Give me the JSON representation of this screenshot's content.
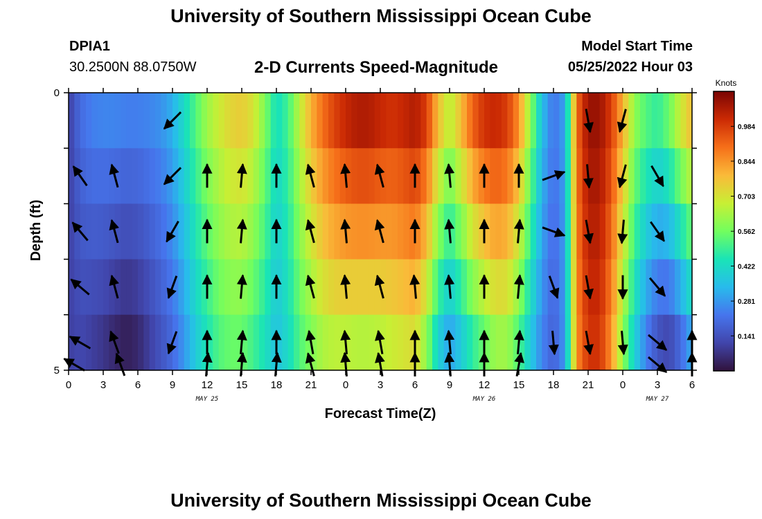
{
  "header": {
    "title": "University of Southern Mississippi Ocean Cube",
    "station_id": "DPIA1",
    "station_coords": "30.2500N  88.0750W",
    "chart_title": "2-D Currents Speed-Magnitude",
    "model_start_label": "Model Start Time",
    "model_start_value": "05/25/2022 Hour 03"
  },
  "footer": {
    "title": "University of Southern Mississippi Ocean Cube"
  },
  "chart_data": {
    "type": "heatmap",
    "title": "2-D Currents Speed-Magnitude",
    "xlabel": "Forecast Time(Z)",
    "ylabel": "Depth (ft)",
    "x_unit": "hours UTC from 2022-05-25 00Z",
    "x_range": [
      0,
      54
    ],
    "x_ticks": [
      0,
      3,
      6,
      9,
      12,
      15,
      18,
      21,
      24,
      27,
      30,
      33,
      36,
      39,
      42,
      45,
      48,
      51,
      54
    ],
    "x_tick_labels": [
      "0",
      "3",
      "6",
      "9",
      "12",
      "15",
      "18",
      "21",
      "0",
      "3",
      "6",
      "9",
      "12",
      "15",
      "18",
      "21",
      "0",
      "3",
      "6"
    ],
    "date_labels": [
      {
        "x": 12,
        "text": "MAY 25"
      },
      {
        "x": 36,
        "text": "MAY 26"
      },
      {
        "x": 51,
        "text": "MAY 27"
      }
    ],
    "y_range": [
      0,
      5
    ],
    "y_ticks": [
      0,
      1,
      2,
      3,
      4,
      5
    ],
    "y_tick_labels": [
      "0",
      "",
      "",
      "",
      "",
      "5"
    ],
    "colorbar": {
      "unit": "Knots",
      "range": [
        0,
        1.125
      ],
      "tick_values": [
        0.141,
        0.281,
        0.422,
        0.562,
        0.703,
        0.844,
        0.984
      ],
      "tick_labels": [
        "0.141",
        "0.281",
        "0.422",
        "0.562",
        "0.703",
        "0.844",
        "0.984"
      ]
    },
    "depths": [
      0.5,
      1.5,
      2.5,
      3.5,
      4.5
    ],
    "surface_profile": [
      [
        0,
        0.1
      ],
      [
        1,
        0.2
      ],
      [
        2,
        0.24
      ],
      [
        3,
        0.25
      ],
      [
        4,
        0.25
      ],
      [
        5,
        0.24
      ],
      [
        6,
        0.24
      ],
      [
        7,
        0.25
      ],
      [
        8,
        0.27
      ],
      [
        9,
        0.32
      ],
      [
        10,
        0.42
      ],
      [
        11,
        0.52
      ],
      [
        12,
        0.62
      ],
      [
        13,
        0.68
      ],
      [
        14,
        0.73
      ],
      [
        15,
        0.75
      ],
      [
        16,
        0.7
      ],
      [
        17,
        0.58
      ],
      [
        18,
        0.43
      ],
      [
        19,
        0.5
      ],
      [
        20,
        0.66
      ],
      [
        21,
        0.8
      ],
      [
        22,
        0.9
      ],
      [
        23,
        0.97
      ],
      [
        24,
        1.02
      ],
      [
        25,
        1.05
      ],
      [
        26,
        1.05
      ],
      [
        27,
        1.02
      ],
      [
        28,
        1.0
      ],
      [
        29,
        1.02
      ],
      [
        30,
        1.05
      ],
      [
        31,
        0.98
      ],
      [
        32,
        0.78
      ],
      [
        33,
        0.65
      ],
      [
        34,
        0.78
      ],
      [
        35,
        0.92
      ],
      [
        36,
        1.0
      ],
      [
        37,
        1.02
      ],
      [
        38,
        0.98
      ],
      [
        39,
        0.85
      ],
      [
        40,
        0.6
      ],
      [
        41,
        0.35
      ],
      [
        42,
        0.22
      ],
      [
        43,
        0.3
      ],
      [
        44,
        0.9
      ],
      [
        45,
        1.08
      ],
      [
        46,
        1.08
      ],
      [
        47,
        0.98
      ],
      [
        48,
        0.8
      ],
      [
        49,
        0.6
      ],
      [
        50,
        0.52
      ],
      [
        51,
        0.48
      ],
      [
        52,
        0.55
      ],
      [
        53,
        0.68
      ],
      [
        54,
        0.78
      ]
    ],
    "bottom_profile": [
      [
        0,
        0.1
      ],
      [
        1,
        0.12
      ],
      [
        2,
        0.1
      ],
      [
        3,
        0.08
      ],
      [
        4,
        0.05
      ],
      [
        5,
        0.03
      ],
      [
        6,
        0.05
      ],
      [
        7,
        0.1
      ],
      [
        8,
        0.15
      ],
      [
        9,
        0.2
      ],
      [
        10,
        0.28
      ],
      [
        11,
        0.38
      ],
      [
        12,
        0.45
      ],
      [
        13,
        0.52
      ],
      [
        14,
        0.55
      ],
      [
        15,
        0.55
      ],
      [
        16,
        0.5
      ],
      [
        17,
        0.44
      ],
      [
        18,
        0.36
      ],
      [
        19,
        0.42
      ],
      [
        20,
        0.52
      ],
      [
        21,
        0.58
      ],
      [
        22,
        0.64
      ],
      [
        23,
        0.66
      ],
      [
        24,
        0.66
      ],
      [
        25,
        0.65
      ],
      [
        26,
        0.65
      ],
      [
        27,
        0.66
      ],
      [
        28,
        0.68
      ],
      [
        29,
        0.7
      ],
      [
        30,
        0.72
      ],
      [
        31,
        0.6
      ],
      [
        32,
        0.4
      ],
      [
        33,
        0.3
      ],
      [
        34,
        0.38
      ],
      [
        35,
        0.48
      ],
      [
        36,
        0.55
      ],
      [
        37,
        0.62
      ],
      [
        38,
        0.62
      ],
      [
        39,
        0.52
      ],
      [
        40,
        0.38
      ],
      [
        41,
        0.25
      ],
      [
        42,
        0.18
      ],
      [
        43,
        0.28
      ],
      [
        44,
        0.85
      ],
      [
        45,
        1.0
      ],
      [
        46,
        1.0
      ],
      [
        47,
        0.85
      ],
      [
        48,
        0.6
      ],
      [
        49,
        0.4
      ],
      [
        50,
        0.25
      ],
      [
        51,
        0.15
      ],
      [
        52,
        0.12
      ],
      [
        53,
        0.2
      ],
      [
        54,
        0.32
      ]
    ],
    "vectors": [
      {
        "t": 9,
        "depths": [
          0.5,
          1.5,
          2.5,
          3.5,
          4.5
        ],
        "dir": [
          225,
          225,
          210,
          200,
          200
        ]
      },
      {
        "t": 1,
        "depths": [
          1.5,
          2.5,
          3.5,
          4.5
        ],
        "dir": [
          325,
          320,
          310,
          300
        ]
      },
      {
        "t": 4,
        "depths": [
          1.5,
          2.5,
          3.5,
          4.5
        ],
        "dir": [
          345,
          345,
          345,
          340
        ]
      },
      {
        "t": 0.5,
        "depths": [
          4.9
        ],
        "dir": [
          300
        ]
      },
      {
        "t": 4.5,
        "depths": [
          4.9
        ],
        "dir": [
          340
        ]
      },
      {
        "t": 12,
        "depths": [
          1.5,
          2.5,
          3.5,
          4.5,
          4.9
        ],
        "dir": [
          0,
          0,
          0,
          0,
          5
        ]
      },
      {
        "t": 15,
        "depths": [
          1.5,
          2.5,
          3.5,
          4.5,
          4.9
        ],
        "dir": [
          5,
          5,
          5,
          5,
          5
        ]
      },
      {
        "t": 18,
        "depths": [
          1.5,
          2.5,
          3.5,
          4.5,
          4.9
        ],
        "dir": [
          0,
          0,
          0,
          0,
          5
        ]
      },
      {
        "t": 21,
        "depths": [
          1.5,
          2.5,
          3.5,
          4.5,
          4.9
        ],
        "dir": [
          345,
          345,
          345,
          350,
          345
        ]
      },
      {
        "t": 24,
        "depths": [
          1.5,
          2.5,
          3.5,
          4.5,
          4.9
        ],
        "dir": [
          355,
          355,
          355,
          355,
          355
        ]
      },
      {
        "t": 27,
        "depths": [
          1.5,
          2.5,
          3.5,
          4.5,
          4.9
        ],
        "dir": [
          345,
          345,
          345,
          350,
          350
        ]
      },
      {
        "t": 30,
        "depths": [
          1.5,
          2.5,
          3.5,
          4.5,
          4.9
        ],
        "dir": [
          0,
          0,
          355,
          0,
          0
        ]
      },
      {
        "t": 33,
        "depths": [
          1.5,
          2.5,
          3.5,
          4.5,
          4.9
        ],
        "dir": [
          355,
          355,
          355,
          355,
          355
        ]
      },
      {
        "t": 36,
        "depths": [
          1.5,
          2.5,
          3.5,
          4.5,
          4.9
        ],
        "dir": [
          0,
          0,
          0,
          0,
          0
        ]
      },
      {
        "t": 39,
        "depths": [
          1.5,
          2.5,
          3.5,
          4.5,
          4.9
        ],
        "dir": [
          0,
          5,
          5,
          5,
          10
        ]
      },
      {
        "t": 42,
        "depths": [
          1.5,
          2.5,
          3.5,
          4.5
        ],
        "dir": [
          70,
          110,
          160,
          175
        ]
      },
      {
        "t": 45,
        "depths": [
          0.5,
          1.5,
          2.5,
          3.5,
          4.5
        ],
        "dir": [
          170,
          175,
          170,
          170,
          170
        ]
      },
      {
        "t": 48,
        "depths": [
          0.5,
          1.5,
          2.5,
          3.5,
          4.5
        ],
        "dir": [
          195,
          195,
          185,
          180,
          175
        ]
      },
      {
        "t": 51,
        "depths": [
          1.5,
          2.5,
          3.5,
          4.5,
          4.9
        ],
        "dir": [
          150,
          145,
          140,
          130,
          130
        ]
      },
      {
        "t": 54,
        "depths": [
          4.5,
          4.9
        ],
        "dir": [
          0,
          0
        ]
      }
    ]
  },
  "colors": {
    "vector": "#000000",
    "axis": "#000000",
    "background": "#ffffff"
  }
}
